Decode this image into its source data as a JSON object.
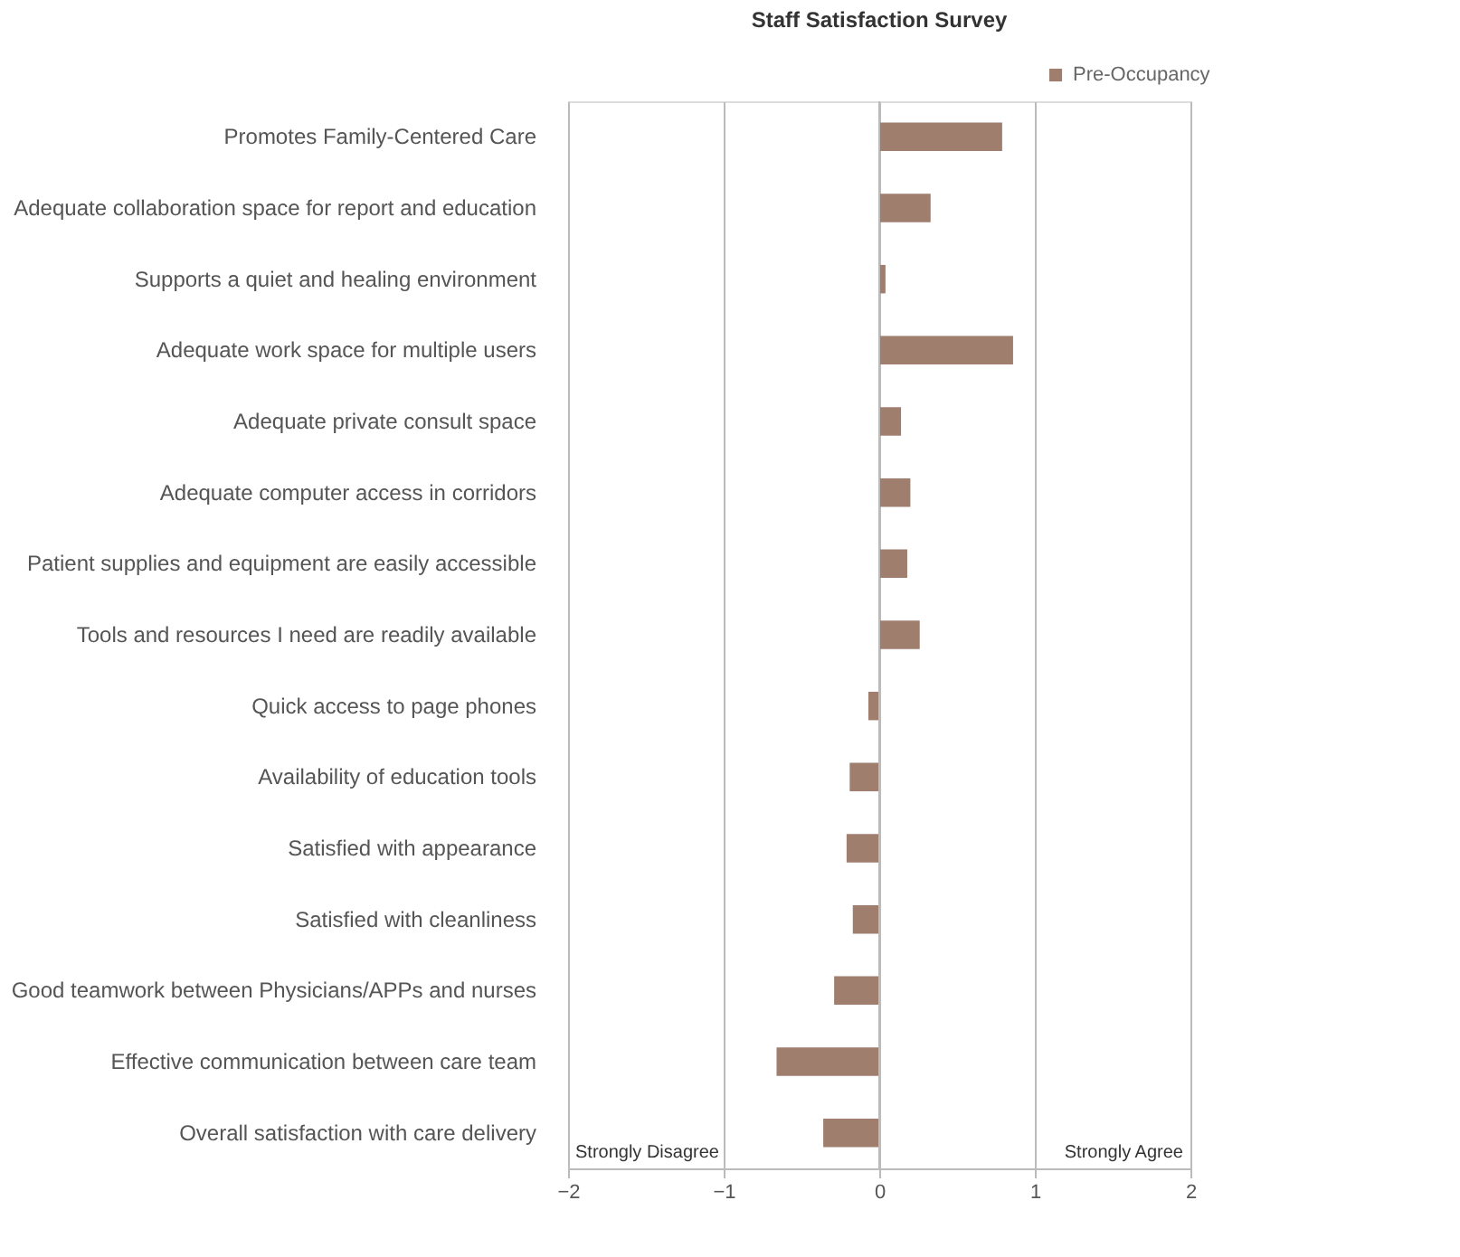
{
  "chart_data": {
    "type": "bar",
    "orientation": "horizontal",
    "title": "Staff Satisfaction Survey",
    "categories": [
      "Promotes Family-Centered Care",
      "Adequate collaboration space for report and education",
      "Supports a quiet and healing environment",
      "Adequate work space for multiple users",
      "Adequate private consult space",
      "Adequate computer access in corridors",
      "Patient supplies and equipment are easily accessible",
      "Tools and resources I need are readily available",
      "Quick access to page phones",
      "Availability of education tools",
      "Satisfied with appearance ",
      "Satisfied with cleanliness",
      "Good teamwork between Physicians/APPs and nurses",
      "Effective communication between care team",
      "Overall satisfaction with care delivery"
    ],
    "series": [
      {
        "name": "Pre-Occupancy",
        "color": "#a07e6e",
        "values": [
          0.79,
          0.33,
          0.04,
          0.86,
          0.14,
          0.2,
          0.18,
          0.26,
          -0.07,
          -0.19,
          -0.21,
          -0.17,
          -0.29,
          -0.66,
          -0.36
        ]
      }
    ],
    "xlim": [
      -2,
      2
    ],
    "xticks": [
      -2,
      -1,
      0,
      1,
      2
    ],
    "grid": "x",
    "legend": "top right",
    "annotations": [
      "Strongly Disagree",
      "Strongly Agree"
    ]
  }
}
